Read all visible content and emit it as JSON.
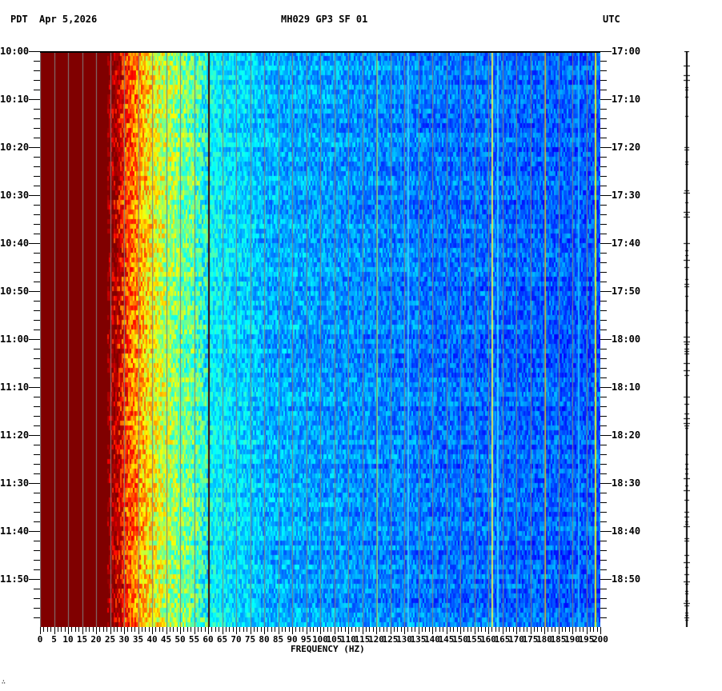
{
  "header": {
    "left_tz": "PDT",
    "date": "Apr 5,2026",
    "station": "MH029 GP3 SF 01",
    "right_tz": "UTC"
  },
  "footer_mark": "∴",
  "chart_data": {
    "type": "heatmap",
    "title": "MH029 GP3 SF 01",
    "subtitle": "Apr 5,2026",
    "xlabel": "FREQUENCY (HZ)",
    "ylabel_left": "PDT",
    "ylabel_right": "UTC",
    "xlim": [
      0,
      200
    ],
    "x_ticks": [
      0,
      5,
      10,
      15,
      20,
      25,
      30,
      35,
      40,
      45,
      50,
      55,
      60,
      65,
      70,
      75,
      80,
      85,
      90,
      95,
      100,
      105,
      110,
      115,
      120,
      125,
      130,
      135,
      140,
      145,
      150,
      155,
      160,
      165,
      170,
      175,
      180,
      185,
      190,
      195,
      200
    ],
    "y_ticks_left": [
      "10:00",
      "10:10",
      "10:20",
      "10:30",
      "10:40",
      "10:50",
      "11:00",
      "11:10",
      "11:20",
      "11:30",
      "11:40",
      "11:50"
    ],
    "y_ticks_right": [
      "17:00",
      "17:10",
      "17:20",
      "17:30",
      "17:40",
      "17:50",
      "18:00",
      "18:10",
      "18:20",
      "18:30",
      "18:40",
      "18:50"
    ],
    "time_span_minutes": 120,
    "minor_tick_minutes": 2,
    "grid_vertical_every_hz": 5,
    "grid_on": true,
    "colormap": "jet",
    "colormap_stops": [
      "#00007f",
      "#0000ff",
      "#007fff",
      "#00ffff",
      "#7fff7f",
      "#ffff00",
      "#ff7f00",
      "#ff0000",
      "#7f0000"
    ],
    "saturated_color": "#800000",
    "grid_color": "#808080",
    "spectral_profile": {
      "description": "Relative power (0=dark blue,1=dark red) vs frequency",
      "freq_hz": [
        0,
        24,
        27,
        30,
        35,
        40,
        45,
        50,
        55,
        60,
        65,
        70,
        75,
        80,
        100,
        120,
        140,
        160,
        180,
        200
      ],
      "level": [
        1.0,
        1.0,
        0.92,
        0.82,
        0.72,
        0.62,
        0.55,
        0.5,
        0.46,
        0.38,
        0.36,
        0.34,
        0.33,
        0.3,
        0.28,
        0.26,
        0.24,
        0.23,
        0.22,
        0.21
      ]
    },
    "narrowband_lines_hz": [
      {
        "hz": 60,
        "color": "#400000"
      },
      {
        "hz": 120,
        "color": "#80ff80"
      },
      {
        "hz": 131,
        "color": "#40d0ff"
      },
      {
        "hz": 161,
        "color": "#ffff40"
      },
      {
        "hz": 163,
        "color": "#40e0ff"
      },
      {
        "hz": 180,
        "color": "#ffcc00"
      },
      {
        "hz": 192,
        "color": "#20c0ff"
      },
      {
        "hz": 198,
        "color": "#ffff00"
      }
    ]
  }
}
